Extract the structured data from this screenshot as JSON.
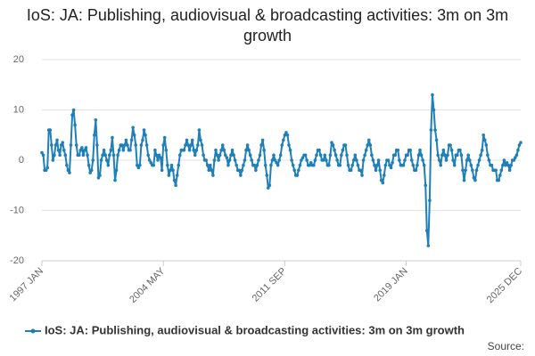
{
  "chart_data": {
    "type": "line",
    "title": "IoS: JA: Publishing, audiovisual & broadcasting activities: 3m on 3m growth",
    "source": "Source:",
    "categories": [
      "1997 JAN",
      null,
      null,
      null,
      null,
      null,
      null,
      null,
      null,
      null,
      null,
      null,
      null,
      null,
      null,
      null,
      null,
      null,
      null,
      null,
      null,
      null,
      null,
      null,
      null,
      null,
      null,
      null,
      null,
      null,
      null,
      null,
      null,
      null,
      null,
      null,
      null,
      null,
      null,
      null,
      null,
      null,
      null,
      null,
      null,
      null,
      null,
      null,
      null,
      null,
      null,
      null,
      null,
      null,
      null,
      null,
      null,
      null,
      null,
      null,
      null,
      null,
      null,
      null,
      null,
      null,
      null,
      null,
      null,
      null,
      null,
      null,
      null,
      null,
      null,
      null,
      null,
      null,
      null,
      null,
      null,
      null,
      null,
      null,
      null,
      null,
      null,
      null,
      "2004 MAY",
      null,
      null,
      null,
      null,
      null,
      null,
      null,
      null,
      null,
      null,
      null,
      null,
      null,
      null,
      null,
      null,
      null,
      null,
      null,
      null,
      null,
      null,
      null,
      null,
      null,
      null,
      null,
      null,
      null,
      null,
      null,
      null,
      null,
      null,
      null,
      null,
      null,
      null,
      null,
      null,
      null,
      null,
      null,
      null,
      null,
      null,
      null,
      null,
      null,
      null,
      null,
      null,
      null,
      null,
      null,
      null,
      null,
      null,
      null,
      null,
      null,
      null,
      null,
      null,
      null,
      null,
      null,
      null,
      null,
      null,
      null,
      null,
      null,
      null,
      null,
      null,
      null,
      null,
      null,
      null,
      null,
      null,
      null,
      null,
      null,
      null,
      null,
      "2011 SEP",
      null,
      null,
      null,
      null,
      null,
      null,
      null,
      null,
      null,
      null,
      null,
      null,
      null,
      null,
      null,
      null,
      null,
      null,
      null,
      null,
      null,
      null,
      null,
      null,
      null,
      null,
      null,
      null,
      null,
      null,
      null,
      null,
      null,
      null,
      null,
      null,
      null,
      null,
      null,
      null,
      null,
      null,
      null,
      null,
      null,
      null,
      null,
      null,
      null,
      null,
      null,
      null,
      null,
      null,
      null,
      null,
      null,
      null,
      null,
      null,
      null,
      null,
      null,
      null,
      null,
      null,
      null,
      null,
      null,
      null,
      null,
      null,
      null,
      null,
      null,
      null,
      null,
      null,
      null,
      null,
      null,
      null,
      null,
      null,
      null,
      null,
      null,
      "2019 JAN",
      null,
      null,
      null,
      null,
      null,
      null,
      null,
      null,
      null,
      null,
      null,
      null,
      null,
      null,
      null,
      null,
      null,
      null,
      null,
      null,
      null,
      null,
      null,
      null,
      null,
      null,
      null,
      null,
      null,
      null,
      null,
      null,
      null,
      null,
      null,
      null,
      null,
      null,
      null,
      null,
      null,
      null,
      null,
      null,
      null,
      null,
      null,
      null,
      null,
      null,
      null,
      null,
      null,
      null,
      null,
      null,
      null,
      null,
      null,
      null,
      null,
      null,
      null,
      null,
      null,
      null,
      null,
      null,
      null,
      null,
      null,
      null,
      null,
      null,
      null,
      null,
      null,
      null,
      null,
      null,
      null,
      null,
      "2025 DEC"
    ],
    "series": [
      {
        "name": "IoS: JA: Publishing, audiovisual & broadcasting activities: 3m on 3m growth",
        "color": "#1f7fb8",
        "values": [
          1.5,
          1,
          -2,
          -2,
          -1.5,
          6,
          6,
          3,
          0,
          1,
          3,
          4,
          2,
          1,
          3,
          3.5,
          2,
          1,
          -1,
          -2,
          -2.5,
          3,
          9,
          10,
          7,
          3,
          1,
          1,
          2,
          2.5,
          1,
          2,
          2.5,
          1,
          -1,
          -2.5,
          -2,
          0,
          5,
          8,
          3,
          -3.5,
          -3,
          0,
          1,
          2,
          1,
          0,
          -1,
          1,
          2,
          4.5,
          1,
          -4,
          -2,
          1,
          2,
          3,
          3,
          2,
          3,
          4,
          3,
          2,
          2,
          4,
          6.5,
          5,
          3,
          -1,
          -1.5,
          -1,
          3,
          4,
          6,
          5,
          3,
          1,
          0,
          -0.5,
          -1,
          -1,
          2,
          1,
          0,
          1,
          0.5,
          -2,
          3,
          4.5,
          2,
          -1,
          -3,
          -2,
          -1,
          -2,
          -4,
          -5,
          -3,
          -1,
          1,
          2,
          2,
          2,
          3,
          4,
          3,
          2,
          3,
          4,
          2,
          1,
          2,
          3,
          6,
          4,
          3,
          1,
          0,
          0,
          -1,
          -2,
          -1,
          -2,
          -3,
          0,
          2,
          1,
          0,
          1,
          2,
          3,
          2,
          1,
          0.5,
          -1,
          0,
          1,
          2,
          1,
          0,
          -1,
          -2,
          -2,
          -3,
          -2,
          -1,
          0,
          2,
          3,
          2,
          1,
          0,
          -1,
          -1,
          -2,
          -1,
          0,
          1,
          3,
          4,
          2,
          -1,
          -3,
          -5.5,
          -5,
          -1,
          0,
          1,
          0,
          -0.5,
          -1,
          0,
          1,
          3,
          4,
          5,
          5.5,
          5,
          3,
          2,
          0,
          -1,
          -2,
          -3,
          -3,
          -2,
          -1,
          0,
          0.5,
          1,
          1,
          0,
          -1,
          -1,
          -0.5,
          -1,
          -1,
          0,
          1,
          2,
          2,
          1,
          0,
          0,
          1,
          0,
          -1,
          -1,
          1,
          3.5,
          3,
          2,
          1,
          0,
          -1,
          -1,
          1,
          2,
          3,
          3,
          1,
          -1,
          -2,
          -2,
          -1,
          0,
          1,
          0,
          -1,
          -2,
          -2,
          -3,
          0,
          1,
          2,
          3,
          4,
          3,
          1,
          0,
          -1,
          -2,
          -1,
          0,
          -2,
          -4,
          -4.5,
          -3,
          -1,
          0,
          0,
          -1,
          -1.5,
          -0.5,
          1,
          1,
          2,
          2,
          0,
          -1,
          -1,
          -1,
          0,
          1,
          1,
          2,
          2,
          0,
          -1,
          -2,
          -2,
          -1,
          1,
          2,
          1,
          0,
          -1,
          -5,
          -14,
          -17,
          -8,
          6,
          13,
          10,
          6,
          4,
          1,
          0,
          -1,
          1,
          2,
          1,
          0,
          1,
          3,
          3,
          2,
          0,
          -1,
          1,
          1,
          2,
          2,
          1,
          -2,
          -4,
          -2,
          0,
          1,
          0,
          -1,
          -2,
          -3.5,
          -4,
          -2,
          -1,
          0,
          1,
          2,
          5,
          4,
          3,
          1,
          0,
          -1,
          -1,
          -2,
          -2,
          -2,
          -4,
          -4,
          -3,
          -2,
          -1,
          0,
          -1,
          -0.5,
          -1,
          -2,
          -1,
          0,
          0,
          0.5,
          1,
          2,
          3,
          3.5
        ]
      }
    ],
    "ylim": [
      -20,
      20
    ],
    "yticks": [
      -20,
      -10,
      0,
      10,
      20
    ],
    "grid": true
  }
}
